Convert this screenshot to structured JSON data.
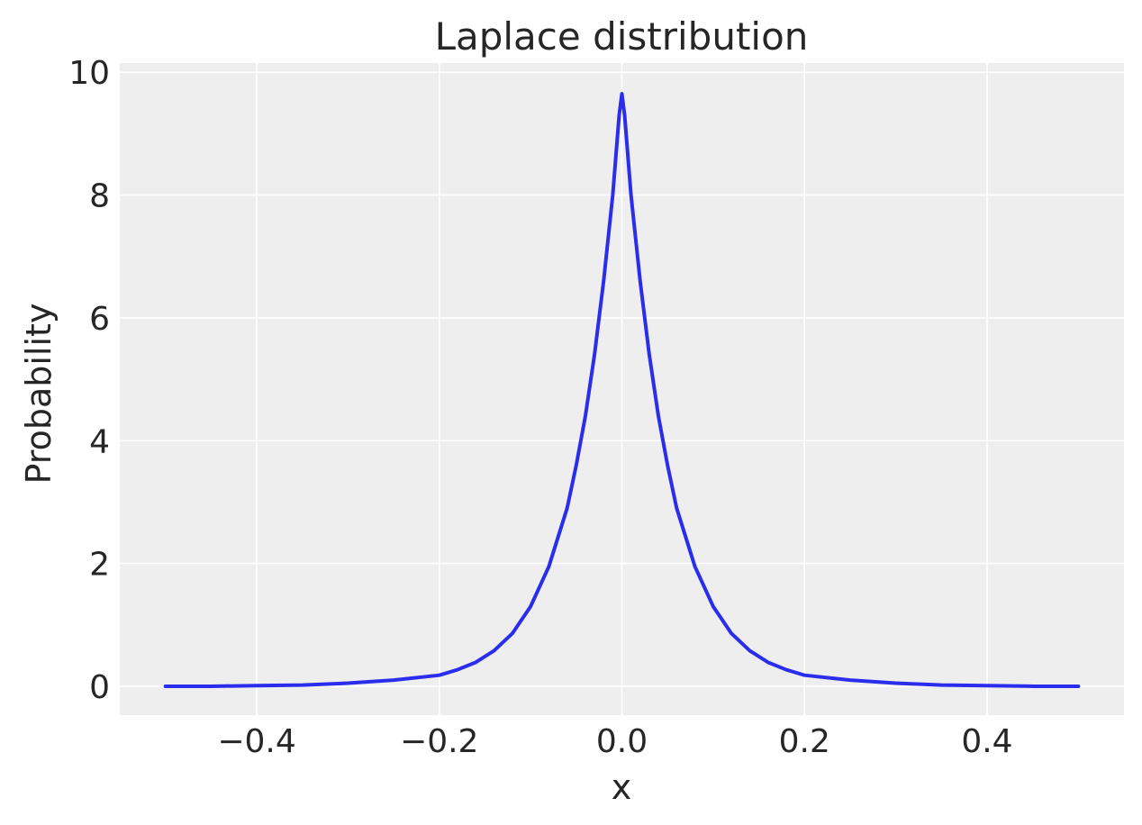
{
  "chart_data": {
    "type": "line",
    "title": "Laplace distribution",
    "xlabel": "x",
    "ylabel": "Probability",
    "xlim": [
      -0.55,
      0.55
    ],
    "ylim": [
      -0.47,
      10.15
    ],
    "xticks": [
      -0.4,
      -0.2,
      0.0,
      0.2,
      0.4
    ],
    "xtick_labels": [
      "−0.4",
      "−0.2",
      "0.0",
      "0.2",
      "0.4"
    ],
    "yticks": [
      0,
      2,
      4,
      6,
      8,
      10
    ],
    "ytick_labels": [
      "0",
      "2",
      "4",
      "6",
      "8",
      "10"
    ],
    "grid": true,
    "legend": "none",
    "series": [
      {
        "color": "#2a2eec",
        "x": [
          -0.5,
          -0.45,
          -0.4,
          -0.35,
          -0.3,
          -0.25,
          -0.2,
          -0.18,
          -0.16,
          -0.14,
          -0.12,
          -0.1,
          -0.08,
          -0.06,
          -0.05,
          -0.04,
          -0.03,
          -0.02,
          -0.01,
          -0.003,
          0.0,
          0.003,
          0.01,
          0.02,
          0.03,
          0.04,
          0.05,
          0.06,
          0.08,
          0.1,
          0.12,
          0.14,
          0.16,
          0.18,
          0.2,
          0.25,
          0.3,
          0.35,
          0.4,
          0.45,
          0.5
        ],
        "y": [
          0.0,
          0.0,
          0.01,
          0.02,
          0.05,
          0.1,
          0.18,
          0.27,
          0.39,
          0.58,
          0.86,
          1.3,
          1.95,
          2.9,
          3.6,
          4.4,
          5.4,
          6.6,
          8.0,
          9.3,
          9.65,
          9.3,
          8.0,
          6.6,
          5.4,
          4.4,
          3.6,
          2.9,
          1.95,
          1.3,
          0.86,
          0.58,
          0.39,
          0.27,
          0.18,
          0.1,
          0.05,
          0.02,
          0.01,
          0.0,
          0.0
        ]
      }
    ]
  }
}
